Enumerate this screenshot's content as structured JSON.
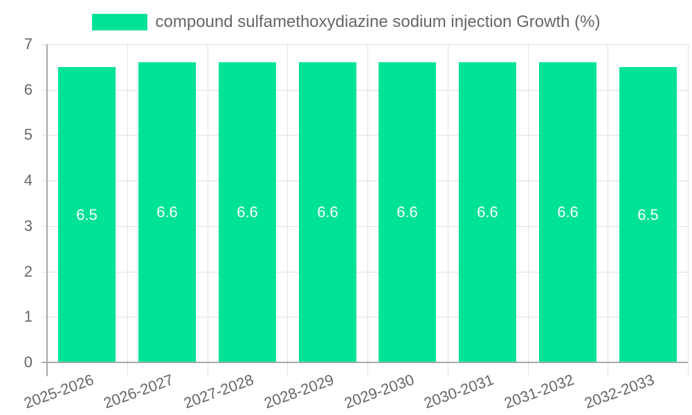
{
  "chart_data": {
    "type": "bar",
    "title": "",
    "xlabel": "",
    "ylabel": "",
    "legend": {
      "position": "top",
      "entries": [
        "compound sulfamethoxydiazine sodium injection Growth (%)"
      ]
    },
    "categories": [
      "2025-2026",
      "2026-2027",
      "2027-2028",
      "2028-2029",
      "2029-2030",
      "2030-2031",
      "2031-2032",
      "2032-2033"
    ],
    "series": [
      {
        "name": "compound sulfamethoxydiazine sodium injection Growth (%)",
        "values": [
          6.5,
          6.6,
          6.6,
          6.6,
          6.6,
          6.6,
          6.6,
          6.5
        ],
        "color": "#00e396"
      }
    ],
    "data_labels": [
      "6.5",
      "6.6",
      "6.6",
      "6.6",
      "6.6",
      "6.6",
      "6.6",
      "6.5"
    ],
    "ylim": [
      0,
      7
    ],
    "yticks": [
      "0",
      "1",
      "2",
      "3",
      "4",
      "5",
      "6",
      "7"
    ],
    "grid": true
  },
  "legend": {
    "label": "compound sulfamethoxydiazine sodium injection Growth (%)",
    "color": "#00e396"
  }
}
